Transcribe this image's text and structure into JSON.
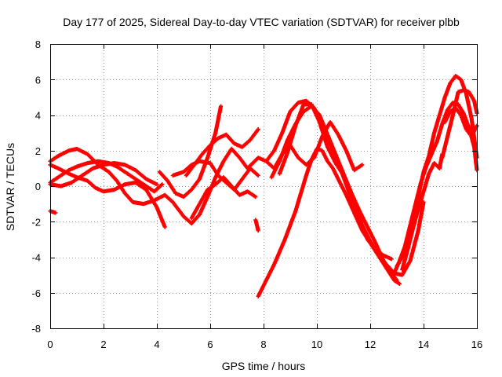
{
  "chart_data": {
    "type": "scatter",
    "title": "Day 177 of 2025, Sidereal Day-to-day VTEC variation (SDTVAR) for receiver plbb",
    "xlabel": "GPS time / hours",
    "ylabel": "SDTVAR / TECUs",
    "xlim": [
      0,
      16
    ],
    "ylim": [
      -8,
      8
    ],
    "xticks": [
      "0",
      "2",
      "4",
      "6",
      "8",
      "10",
      "12",
      "14",
      "16"
    ],
    "yticks": [
      "-8",
      "-6",
      "-4",
      "-2",
      "0",
      "2",
      "4",
      "6",
      "8"
    ],
    "grid": true,
    "legend": "none",
    "marker": "plus",
    "color": "#ff0000",
    "series": [
      {
        "points": [
          [
            0.0,
            1.4
          ],
          [
            0.3,
            1.7
          ],
          [
            0.7,
            2.0
          ],
          [
            1.0,
            2.1
          ],
          [
            1.4,
            1.8
          ],
          [
            1.8,
            1.2
          ],
          [
            2.2,
            0.8
          ],
          [
            2.5,
            0.3
          ],
          [
            2.8,
            -0.4
          ],
          [
            3.1,
            -0.9
          ],
          [
            3.5,
            -1.0
          ],
          [
            3.9,
            -0.8
          ],
          [
            4.3,
            -0.5
          ],
          [
            4.6,
            -0.9
          ],
          [
            5.0,
            -1.7
          ],
          [
            5.3,
            -2.1
          ],
          [
            5.6,
            -1.6
          ],
          [
            5.9,
            -0.6
          ],
          [
            6.2,
            0.5
          ],
          [
            6.5,
            1.4
          ],
          [
            6.8,
            2.1
          ],
          [
            7.1,
            1.6
          ],
          [
            7.4,
            1.0
          ],
          [
            7.8,
            1.6
          ],
          [
            8.1,
            1.4
          ],
          [
            8.4,
            2.0
          ],
          [
            8.7,
            3.0
          ],
          [
            9.0,
            4.2
          ],
          [
            9.3,
            4.7
          ],
          [
            9.6,
            4.8
          ],
          [
            9.9,
            4.4
          ],
          [
            10.2,
            3.4
          ],
          [
            10.5,
            2.4
          ],
          [
            10.8,
            1.3
          ],
          [
            11.1,
            0.1
          ],
          [
            11.4,
            -1.1
          ],
          [
            11.7,
            -2.2
          ],
          [
            12.0,
            -3.1
          ],
          [
            12.3,
            -3.8
          ],
          [
            12.6,
            -4.4
          ],
          [
            12.9,
            -4.9
          ],
          [
            13.2,
            -5.0
          ],
          [
            13.5,
            -4.2
          ],
          [
            13.8,
            -2.5
          ],
          [
            14.0,
            -0.9
          ]
        ]
      },
      {
        "points": [
          [
            0.0,
            0.2
          ],
          [
            0.3,
            0.5
          ],
          [
            0.7,
            0.9
          ],
          [
            1.0,
            1.1
          ],
          [
            1.4,
            1.3
          ],
          [
            1.8,
            1.4
          ],
          [
            2.2,
            1.3
          ],
          [
            2.5,
            1.1
          ],
          [
            2.8,
            0.8
          ],
          [
            3.1,
            0.5
          ],
          [
            3.5,
            0.1
          ],
          [
            3.9,
            -0.3
          ],
          [
            4.2,
            0.1
          ]
        ]
      },
      {
        "points": [
          [
            0.0,
            1.2
          ],
          [
            0.3,
            1.0
          ],
          [
            0.7,
            0.7
          ],
          [
            1.0,
            0.5
          ],
          [
            1.4,
            0.3
          ],
          [
            1.7,
            -0.1
          ],
          [
            2.0,
            -0.3
          ],
          [
            2.4,
            -0.2
          ],
          [
            2.8,
            0.1
          ],
          [
            3.2,
            0.2
          ],
          [
            3.6,
            -0.2
          ],
          [
            4.0,
            -1.2
          ],
          [
            4.3,
            -2.3
          ]
        ]
      },
      {
        "points": [
          [
            0.0,
            0.1
          ],
          [
            0.4,
            0.0
          ],
          [
            0.8,
            0.2
          ],
          [
            1.2,
            0.6
          ],
          [
            1.6,
            1.0
          ],
          [
            2.0,
            1.2
          ],
          [
            2.4,
            1.3
          ],
          [
            2.8,
            1.2
          ],
          [
            3.2,
            0.9
          ],
          [
            3.6,
            0.4
          ],
          [
            4.0,
            0.1
          ]
        ]
      },
      {
        "points": [
          [
            0.0,
            -1.4
          ],
          [
            0.2,
            -1.5
          ]
        ]
      },
      {
        "points": [
          [
            4.1,
            0.8
          ],
          [
            4.4,
            0.3
          ],
          [
            4.7,
            -0.4
          ],
          [
            5.0,
            -0.6
          ],
          [
            5.3,
            -0.2
          ],
          [
            5.6,
            0.4
          ],
          [
            5.9,
            1.6
          ],
          [
            6.2,
            3.0
          ],
          [
            6.4,
            4.5
          ]
        ]
      },
      {
        "points": [
          [
            4.6,
            0.6
          ],
          [
            5.0,
            0.8
          ],
          [
            5.3,
            1.2
          ],
          [
            5.6,
            1.4
          ],
          [
            6.0,
            1.3
          ],
          [
            6.3,
            0.6
          ],
          [
            6.6,
            0.2
          ],
          [
            6.9,
            -0.2
          ],
          [
            7.2,
            0.4
          ],
          [
            7.5,
            1.0
          ],
          [
            7.8,
            0.6
          ]
        ]
      },
      {
        "points": [
          [
            5.1,
            0.6
          ],
          [
            5.4,
            1.2
          ],
          [
            5.7,
            1.8
          ],
          [
            6.0,
            2.3
          ],
          [
            6.3,
            2.7
          ],
          [
            6.6,
            2.9
          ],
          [
            6.9,
            2.4
          ],
          [
            7.2,
            2.2
          ],
          [
            7.5,
            2.6
          ],
          [
            7.8,
            3.2
          ]
        ]
      },
      {
        "points": [
          [
            5.3,
            -1.8
          ],
          [
            5.6,
            -1.0
          ],
          [
            5.9,
            -0.2
          ],
          [
            6.2,
            0.1
          ],
          [
            6.5,
            0.5
          ],
          [
            6.8,
            0.0
          ],
          [
            7.1,
            -0.5
          ],
          [
            7.4,
            -0.3
          ],
          [
            7.7,
            -0.6
          ]
        ]
      },
      {
        "points": [
          [
            7.7,
            -1.9
          ],
          [
            7.8,
            -2.5
          ]
        ]
      },
      {
        "points": [
          [
            7.8,
            -6.2
          ],
          [
            8.0,
            -5.6
          ],
          [
            8.2,
            -5.0
          ],
          [
            8.4,
            -4.4
          ],
          [
            8.6,
            -3.7
          ],
          [
            8.8,
            -3.0
          ],
          [
            9.0,
            -2.2
          ],
          [
            9.2,
            -1.4
          ],
          [
            9.4,
            -0.4
          ],
          [
            9.6,
            0.6
          ],
          [
            9.8,
            1.5
          ],
          [
            10.0,
            2.1
          ],
          [
            10.2,
            2.0
          ],
          [
            10.4,
            1.4
          ],
          [
            10.6,
            1.0
          ],
          [
            10.8,
            0.4
          ],
          [
            11.1,
            -0.5
          ],
          [
            11.4,
            -1.5
          ],
          [
            11.7,
            -2.5
          ],
          [
            12.0,
            -3.2
          ],
          [
            12.3,
            -3.9
          ],
          [
            12.6,
            -4.6
          ],
          [
            12.9,
            -5.3
          ],
          [
            13.1,
            -5.5
          ]
        ]
      },
      {
        "points": [
          [
            8.1,
            1.4
          ],
          [
            8.4,
            1.0
          ],
          [
            8.7,
            1.8
          ],
          [
            9.0,
            2.3
          ],
          [
            9.3,
            1.6
          ],
          [
            9.6,
            1.2
          ],
          [
            9.9,
            1.6
          ],
          [
            10.2,
            2.8
          ],
          [
            10.5,
            3.6
          ],
          [
            10.8,
            2.9
          ],
          [
            11.1,
            2.0
          ],
          [
            11.4,
            0.9
          ],
          [
            11.7,
            1.2
          ]
        ]
      },
      {
        "points": [
          [
            8.3,
            0.5
          ],
          [
            8.6,
            1.4
          ],
          [
            8.9,
            2.6
          ],
          [
            9.2,
            3.5
          ],
          [
            9.5,
            4.2
          ],
          [
            9.8,
            4.5
          ],
          [
            10.1,
            4.0
          ],
          [
            10.4,
            2.9
          ],
          [
            10.7,
            1.8
          ],
          [
            11.0,
            0.7
          ],
          [
            11.3,
            -0.4
          ],
          [
            11.6,
            -1.4
          ],
          [
            11.9,
            -2.3
          ],
          [
            12.2,
            -3.2
          ],
          [
            12.5,
            -4.2
          ],
          [
            12.8,
            -4.9
          ],
          [
            13.0,
            -5.3
          ]
        ]
      },
      {
        "points": [
          [
            8.6,
            0.7
          ],
          [
            8.9,
            1.9
          ],
          [
            9.2,
            3.4
          ],
          [
            9.5,
            4.6
          ],
          [
            9.8,
            4.6
          ],
          [
            10.1,
            3.6
          ],
          [
            10.4,
            2.2
          ],
          [
            10.7,
            1.3
          ],
          [
            11.0,
            0.6
          ],
          [
            11.3,
            -0.8
          ],
          [
            11.6,
            -2.0
          ],
          [
            11.9,
            -3.0
          ],
          [
            12.2,
            -3.6
          ],
          [
            12.5,
            -3.9
          ],
          [
            12.8,
            -4.1
          ]
        ]
      },
      {
        "points": [
          [
            13.0,
            -4.5
          ],
          [
            13.2,
            -4.0
          ],
          [
            13.4,
            -3.2
          ],
          [
            13.6,
            -1.8
          ],
          [
            13.8,
            -0.6
          ],
          [
            14.0,
            0.8
          ],
          [
            14.2,
            1.7
          ],
          [
            14.4,
            3.0
          ],
          [
            14.6,
            4.0
          ],
          [
            14.8,
            5.0
          ],
          [
            15.0,
            5.8
          ],
          [
            15.2,
            6.2
          ],
          [
            15.4,
            6.0
          ],
          [
            15.6,
            5.2
          ],
          [
            15.8,
            3.8
          ],
          [
            16.0,
            1.6
          ]
        ]
      },
      {
        "points": [
          [
            12.9,
            -4.9
          ],
          [
            13.1,
            -4.2
          ],
          [
            13.3,
            -3.4
          ],
          [
            13.5,
            -2.2
          ],
          [
            13.7,
            -1.0
          ],
          [
            13.9,
            0.2
          ],
          [
            14.1,
            1.1
          ],
          [
            14.3,
            1.8
          ],
          [
            14.5,
            2.5
          ]
        ]
      },
      {
        "points": [
          [
            13.2,
            -4.7
          ],
          [
            13.4,
            -3.6
          ],
          [
            13.6,
            -2.4
          ],
          [
            13.8,
            -1.3
          ],
          [
            14.0,
            -0.3
          ],
          [
            14.2,
            0.7
          ],
          [
            14.4,
            1.3
          ],
          [
            14.6,
            1.0
          ],
          [
            14.7,
            1.8
          ]
        ]
      },
      {
        "points": [
          [
            14.7,
            1.6
          ],
          [
            14.9,
            2.8
          ],
          [
            15.1,
            4.0
          ],
          [
            15.3,
            5.3
          ],
          [
            15.5,
            5.4
          ],
          [
            15.7,
            5.3
          ],
          [
            15.9,
            4.8
          ],
          [
            16.0,
            4.1
          ]
        ]
      },
      {
        "points": [
          [
            14.5,
            2.5
          ],
          [
            14.7,
            3.5
          ],
          [
            14.9,
            4.3
          ],
          [
            15.1,
            4.7
          ],
          [
            15.3,
            4.6
          ],
          [
            15.5,
            4.1
          ],
          [
            15.7,
            3.3
          ],
          [
            15.9,
            2.2
          ],
          [
            16.0,
            0.9
          ]
        ]
      },
      {
        "points": [
          [
            14.8,
            3.6
          ],
          [
            15.0,
            4.2
          ],
          [
            15.2,
            4.4
          ],
          [
            15.4,
            4.0
          ],
          [
            15.6,
            3.2
          ],
          [
            15.8,
            2.8
          ],
          [
            16.0,
            3.4
          ]
        ]
      }
    ]
  }
}
